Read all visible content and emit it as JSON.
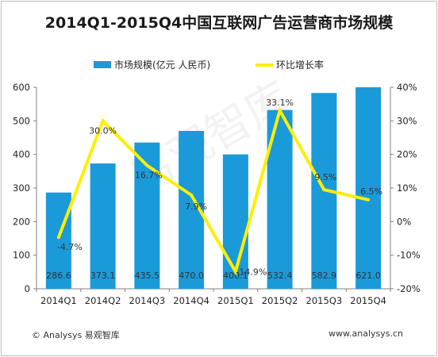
{
  "chart_data": {
    "type": "bar",
    "title": "2014Q1-2015Q4中国互联网广告运营商市场规模",
    "categories": [
      "2014Q1",
      "2014Q2",
      "2014Q3",
      "2014Q4",
      "2015Q1",
      "2015Q2",
      "2015Q3",
      "2015Q4"
    ],
    "series": [
      {
        "name": "市场规模(亿元 人民币)",
        "type": "bar",
        "axis": "left",
        "color": "#1a9ad9",
        "values": [
          286.6,
          373.1,
          435.5,
          470.0,
          400.1,
          532.4,
          582.9,
          621.0
        ],
        "labels": [
          "286.6",
          "373.1",
          "435.5",
          "470.0",
          "400.1",
          "532.4",
          "582.9",
          "621.0"
        ]
      },
      {
        "name": "环比增长率",
        "type": "line",
        "axis": "right",
        "color": "#ffee00",
        "values": [
          -4.7,
          30.0,
          16.7,
          7.9,
          -14.9,
          33.1,
          9.5,
          6.5
        ],
        "labels": [
          "-4.7%",
          "30.0%",
          "16.7%",
          "7.9%",
          "-14.9%",
          "33.1%",
          "9.5%",
          "6.5%"
        ]
      }
    ],
    "y_left": {
      "ylim": [
        0,
        600
      ],
      "ticks": [
        0,
        100,
        200,
        300,
        400,
        500,
        600
      ]
    },
    "y_right": {
      "ylim": [
        -20,
        40
      ],
      "ticks": [
        -20,
        -10,
        0,
        10,
        20,
        30,
        40
      ],
      "tick_labels": [
        "-20%",
        "-10%",
        "0%",
        "10%",
        "20%",
        "30%",
        "40%"
      ]
    },
    "legend": "top",
    "grid": false
  },
  "watermark": "易观智库",
  "footer": {
    "left": "© Analysys 易观智库",
    "right": "www.analysys.cn"
  }
}
